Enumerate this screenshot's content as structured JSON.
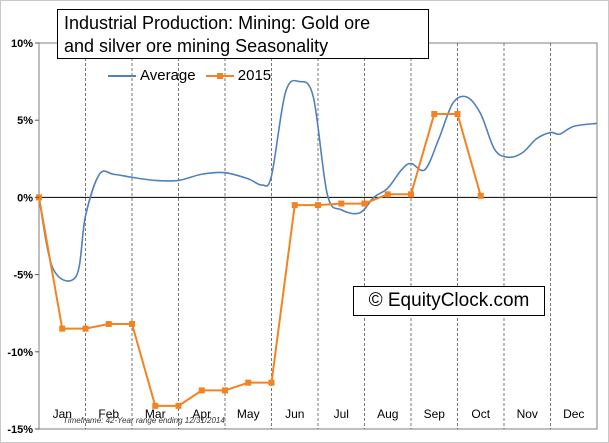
{
  "chart_data": {
    "type": "line",
    "title_lines": [
      "Industrial Production: Mining: Gold ore",
      "and silver ore mining Seasonality"
    ],
    "categories": [
      "Jan",
      "Feb",
      "Mar",
      "Apr",
      "May",
      "Jun",
      "Jul",
      "Aug",
      "Sep",
      "Oct",
      "Nov",
      "Dec"
    ],
    "yticks": [
      "10%",
      "5%",
      "0%",
      "-5%",
      "-10%",
      "-15%"
    ],
    "ylim": [
      -15,
      10
    ],
    "grid": "vertical dashed at month boundaries; solid zero line",
    "legend_position": "top-left",
    "series": [
      {
        "name": "Average",
        "color": "#4f81bd",
        "x": [
          0,
          0.3,
          0.8,
          1.0,
          1.3,
          1.6,
          2.0,
          2.5,
          3.0,
          3.5,
          4.0,
          4.5,
          4.8,
          5.0,
          5.3,
          5.6,
          5.9,
          6.2,
          6.5,
          6.9,
          7.2,
          7.5,
          7.8,
          8.0,
          8.3,
          8.6,
          8.9,
          9.2,
          9.5,
          9.8,
          10.1,
          10.4,
          10.7,
          11.0,
          11.2,
          11.5,
          12.0
        ],
        "values": [
          0,
          -4.6,
          -5.1,
          -1.2,
          1.5,
          1.5,
          1.3,
          1.1,
          1.1,
          1.5,
          1.6,
          1.2,
          0.8,
          1.4,
          6.8,
          7.5,
          6.5,
          0.2,
          -0.8,
          -1.0,
          0.0,
          0.6,
          1.8,
          2.2,
          1.8,
          3.8,
          6.1,
          6.5,
          5.4,
          3.1,
          2.6,
          2.9,
          3.8,
          4.2,
          4.1,
          4.6,
          4.8
        ]
      },
      {
        "name": "2015",
        "color": "#f58220",
        "x": [
          0,
          0.5,
          1.0,
          1.5,
          2.0,
          2.5,
          3.0,
          3.5,
          4.0,
          4.5,
          5.0,
          5.5,
          6.0,
          6.5,
          7.0,
          7.5,
          8.0,
          8.5,
          9.0,
          9.5
        ],
        "values": [
          0,
          -8.5,
          -8.5,
          -8.2,
          -8.2,
          -13.5,
          -13.5,
          -12.5,
          -12.5,
          -12.0,
          -12.0,
          -0.5,
          -0.5,
          -0.4,
          -0.4,
          0.2,
          0.2,
          5.4,
          5.4,
          0.1
        ]
      }
    ],
    "watermark": "© EquityClock.com",
    "footnote": "Timeframe: 42-Year range ending 12/31/2014"
  }
}
